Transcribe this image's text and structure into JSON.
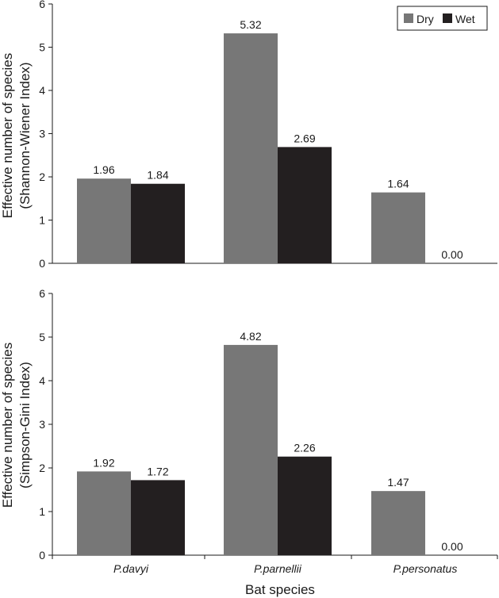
{
  "colors": {
    "Dry": "#777777",
    "Wet": "#231f20",
    "axis": "#1a1a1a"
  },
  "chart_data": [
    {
      "type": "bar",
      "categories": [
        "P.davyi",
        "P.parnellii",
        "P.personatus"
      ],
      "series": [
        {
          "name": "Dry",
          "values": [
            1.96,
            5.32,
            1.64
          ],
          "labels": [
            "1.96",
            "5.32",
            "1.64"
          ]
        },
        {
          "name": "Wet",
          "values": [
            1.84,
            2.69,
            0.0
          ],
          "labels": [
            "1.84",
            "2.69",
            "0.00"
          ]
        }
      ],
      "ylabel": [
        "Effective number of species",
        "(Shannon-Wiener Index)"
      ],
      "xlabel": "",
      "ylim": [
        0,
        6
      ],
      "yticks": [
        "0",
        "1",
        "2",
        "3",
        "4",
        "5",
        "6"
      ],
      "legend": {
        "position": "top-right",
        "entries": [
          "Dry",
          "Wet"
        ]
      },
      "grid": false,
      "show_category_labels": false
    },
    {
      "type": "bar",
      "categories": [
        "P.davyi",
        "P.parnellii",
        "P.personatus"
      ],
      "series": [
        {
          "name": "Dry",
          "values": [
            1.92,
            4.82,
            1.47
          ],
          "labels": [
            "1.92",
            "4.82",
            "1.47"
          ]
        },
        {
          "name": "Wet",
          "values": [
            1.72,
            2.26,
            0.0
          ],
          "labels": [
            "1.72",
            "2.26",
            "0.00"
          ]
        }
      ],
      "ylabel": [
        "Effective number of species",
        "(Simpson-Gini Index)"
      ],
      "xlabel": "Bat species",
      "ylim": [
        0,
        6
      ],
      "yticks": [
        "0",
        "1",
        "2",
        "3",
        "4",
        "5",
        "6"
      ],
      "grid": false,
      "show_category_labels": true
    }
  ]
}
